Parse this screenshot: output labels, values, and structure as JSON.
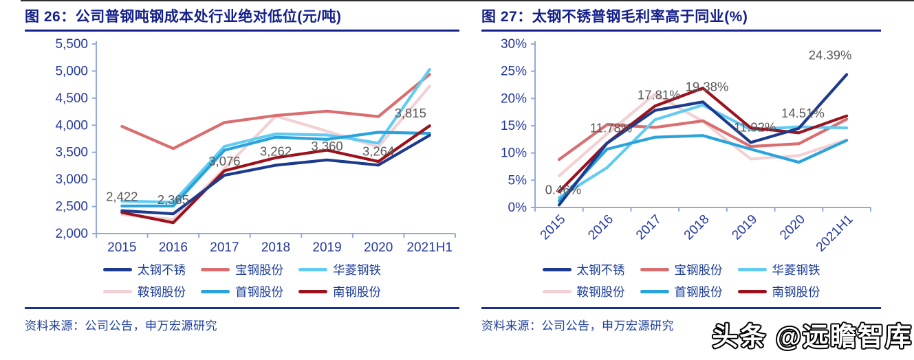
{
  "watermark": "头条 @远瞻智库",
  "footer": {
    "source_label": "资料来源：公司公告，申万宏源研究"
  },
  "palette": {
    "title_blue": "#131f8a",
    "axis_text_blue": "#2438a0",
    "axis_line_blue": "#8faadc",
    "data_label_gray": "#595959",
    "rule_blue": "#1a2f8f"
  },
  "chart_data": [
    {
      "type": "line",
      "title": "图 26：公司普钢吨钢成本处行业绝对低位(元/吨)",
      "categories": [
        "2015",
        "2016",
        "2017",
        "2018",
        "2019",
        "2020",
        "2021H1"
      ],
      "ylim": [
        2000,
        5500
      ],
      "ytick_values": [
        2000,
        2500,
        3000,
        3500,
        4000,
        4500,
        5000,
        5500
      ],
      "ytick_labels": [
        "2,000",
        "2,500",
        "3,000",
        "3,500",
        "4,000",
        "4,500",
        "5,000",
        "5,500"
      ],
      "x_rotated": false,
      "grid": false,
      "legend_position": "bottom",
      "series": [
        {
          "name": "太钢不锈",
          "color": "#1c3a8e",
          "values": [
            2422,
            2365,
            3076,
            3262,
            3360,
            3264,
            3815
          ],
          "labeled": true
        },
        {
          "name": "宝钢股份",
          "color": "#d96d6f",
          "values": [
            3980,
            3570,
            4050,
            4180,
            4260,
            4160,
            4940
          ]
        },
        {
          "name": "华菱钢铁",
          "color": "#62cbf2",
          "values": [
            2600,
            2580,
            3610,
            3840,
            3820,
            3670,
            5030
          ]
        },
        {
          "name": "鞍钢股份",
          "color": "#f2d1d5",
          "values": [
            2350,
            2260,
            3200,
            4170,
            3890,
            3600,
            4720
          ]
        },
        {
          "name": "首钢股份",
          "color": "#2aa3dd",
          "values": [
            2510,
            2510,
            3540,
            3780,
            3740,
            3870,
            3850
          ]
        },
        {
          "name": "南钢股份",
          "color": "#9c121c",
          "values": [
            2390,
            2200,
            3160,
            3400,
            3540,
            3330,
            3990
          ]
        }
      ],
      "point_labels": [
        "2,422",
        "2,365",
        "3,076",
        "3,262",
        "3,360",
        "3,264",
        "3,815"
      ]
    },
    {
      "type": "line",
      "title": "图 27：太钢不锈普钢毛利率高于同业(%)",
      "categories": [
        "2015",
        "2016",
        "2017",
        "2018",
        "2019",
        "2020",
        "2021H1"
      ],
      "ylim": [
        0,
        30
      ],
      "ytick_values": [
        0,
        5,
        10,
        15,
        20,
        25,
        30
      ],
      "ytick_labels": [
        "0%",
        "5%",
        "10%",
        "15%",
        "20%",
        "25%",
        "30%"
      ],
      "x_rotated": true,
      "grid": false,
      "legend_position": "bottom",
      "series": [
        {
          "name": "太钢不锈",
          "color": "#1c3a8e",
          "values": [
            0.46,
            11.78,
            17.81,
            19.38,
            11.92,
            14.51,
            24.39
          ],
          "labeled": true
        },
        {
          "name": "宝钢股份",
          "color": "#d96d6f",
          "values": [
            8.8,
            15.2,
            14.7,
            15.9,
            11.2,
            11.7,
            16.2
          ]
        },
        {
          "name": "华菱钢铁",
          "color": "#62cbf2",
          "values": [
            1.8,
            7.3,
            16.1,
            18.8,
            14.3,
            14.8,
            14.6
          ]
        },
        {
          "name": "鞍钢股份",
          "color": "#f2d1d5",
          "values": [
            5.8,
            13.5,
            20.8,
            15.8,
            8.9,
            9.5,
            12.4
          ]
        },
        {
          "name": "首钢股份",
          "color": "#2aa3dd",
          "values": [
            1.2,
            10.7,
            12.9,
            13.2,
            10.7,
            8.3,
            12.3
          ]
        },
        {
          "name": "南钢股份",
          "color": "#9c121c",
          "values": [
            2.9,
            11.8,
            18.6,
            21.9,
            14.6,
            13.7,
            16.8
          ]
        }
      ],
      "point_labels": [
        "0.46%",
        "11.78%",
        "17.81%",
        "19.38%",
        "11.92%",
        "14.51%",
        "24.39%"
      ]
    }
  ]
}
